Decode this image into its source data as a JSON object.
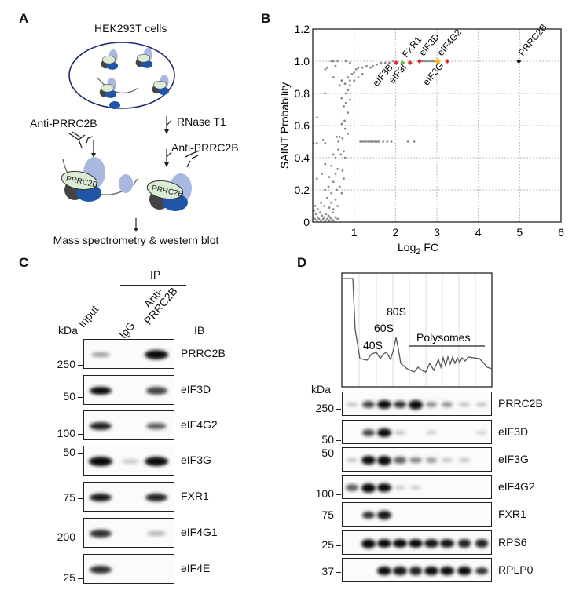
{
  "panel_a": {
    "letter": "A",
    "title": "HEK293T cells",
    "left_antibody": "Anti-PRRC2B",
    "rnase": "RNase T1",
    "right_antibody": "Anti-PRRC2B",
    "complex_label_left": "PRRC2B",
    "complex_label_right": "PRRC2B",
    "readout": "Mass spectrometry & western blot",
    "colors": {
      "cell_outline": "#1f2a6b",
      "light_blue": "#a9b8e0",
      "dark_blue": "#1f56a8",
      "pale_green": "#dcebd5",
      "dark_grey": "#444444"
    }
  },
  "panel_b": {
    "letter": "B"
  },
  "chart_data": {
    "type": "scatter",
    "xlabel": "Log 2 FC",
    "ylabel": "SAINT Probability",
    "xlim": [
      0,
      6
    ],
    "ylim": [
      0,
      1.2
    ],
    "xticks": [
      "1",
      "2",
      "3",
      "4",
      "5",
      "6"
    ],
    "yticks": [
      "0",
      "0.2",
      "0.4",
      "0.6",
      "0.8",
      "1.0",
      "1.2"
    ],
    "grid": true,
    "background_points_color": "#8a8a8a",
    "background_points": [
      [
        0.05,
        0.02
      ],
      [
        0.08,
        0.05
      ],
      [
        0.1,
        0.01
      ],
      [
        0.12,
        0.03
      ],
      [
        0.15,
        0.02
      ],
      [
        0.18,
        0.06
      ],
      [
        0.2,
        0.01
      ],
      [
        0.22,
        0.04
      ],
      [
        0.25,
        0.02
      ],
      [
        0.28,
        0.03
      ],
      [
        0.3,
        0.01
      ],
      [
        0.32,
        0.05
      ],
      [
        0.35,
        0.02
      ],
      [
        0.38,
        0.04
      ],
      [
        0.4,
        0.01
      ],
      [
        0.42,
        0.03
      ],
      [
        0.45,
        0.02
      ],
      [
        0.48,
        0.06
      ],
      [
        0.5,
        0.01
      ],
      [
        0.55,
        0.03
      ],
      [
        0.6,
        0.02
      ],
      [
        0.03,
        0.07
      ],
      [
        0.06,
        0.1
      ],
      [
        0.12,
        0.08
      ],
      [
        0.2,
        0.12
      ],
      [
        0.28,
        0.1
      ],
      [
        0.35,
        0.15
      ],
      [
        0.4,
        0.09
      ],
      [
        0.45,
        0.12
      ],
      [
        0.5,
        0.08
      ],
      [
        0.55,
        0.14
      ],
      [
        0.6,
        0.1
      ],
      [
        0.3,
        0.2
      ],
      [
        0.38,
        0.22
      ],
      [
        0.45,
        0.18
      ],
      [
        0.5,
        0.25
      ],
      [
        0.58,
        0.2
      ],
      [
        0.65,
        0.22
      ],
      [
        0.7,
        0.18
      ],
      [
        0.1,
        0.27
      ],
      [
        0.22,
        0.3
      ],
      [
        0.3,
        0.36
      ],
      [
        0.4,
        0.28
      ],
      [
        0.45,
        0.35
      ],
      [
        0.55,
        0.3
      ],
      [
        0.6,
        0.33
      ],
      [
        0.72,
        0.32
      ],
      [
        0.75,
        0.27
      ],
      [
        0.5,
        0.42
      ],
      [
        0.55,
        0.4
      ],
      [
        0.62,
        0.45
      ],
      [
        0.68,
        0.42
      ],
      [
        0.75,
        0.44
      ],
      [
        0.78,
        0.4
      ],
      [
        0.02,
        0.49
      ],
      [
        0.1,
        0.49
      ],
      [
        0.25,
        0.51
      ],
      [
        0.3,
        0.49
      ],
      [
        0.58,
        0.53
      ],
      [
        0.62,
        0.5
      ],
      [
        0.65,
        0.53
      ],
      [
        0.72,
        0.52
      ],
      [
        0.78,
        0.58
      ],
      [
        0.85,
        0.55
      ],
      [
        0.7,
        0.61
      ],
      [
        0.77,
        0.63
      ],
      [
        0.1,
        0.65
      ],
      [
        0.85,
        0.68
      ],
      [
        0.75,
        0.72
      ],
      [
        0.8,
        0.74
      ],
      [
        0.9,
        0.76
      ],
      [
        0.3,
        0.8
      ],
      [
        0.7,
        0.77
      ],
      [
        0.8,
        0.8
      ],
      [
        0.85,
        0.82
      ],
      [
        0.9,
        0.85
      ],
      [
        0.65,
        0.85
      ],
      [
        0.7,
        0.88
      ],
      [
        0.78,
        0.86
      ],
      [
        0.85,
        0.9
      ],
      [
        0.9,
        0.88
      ],
      [
        0.95,
        0.92
      ],
      [
        0.5,
        0.9
      ],
      [
        0.3,
        0.95
      ],
      [
        0.35,
        0.96
      ],
      [
        0.55,
        0.97
      ],
      [
        0.45,
        1.0
      ],
      [
        0.5,
        1.0
      ],
      [
        0.6,
        1.0
      ],
      [
        0.8,
        1.0
      ],
      [
        0.9,
        0.99
      ],
      [
        1.0,
        0.93
      ],
      [
        1.05,
        0.95
      ],
      [
        1.1,
        0.96
      ],
      [
        1.2,
        0.96
      ],
      [
        1.3,
        0.97
      ],
      [
        1.4,
        0.96
      ],
      [
        1.45,
        0.97
      ],
      [
        1.55,
        0.98
      ],
      [
        1.65,
        0.99
      ],
      [
        1.75,
        0.99
      ],
      [
        1.85,
        0.99
      ],
      [
        1.95,
        1.0
      ],
      [
        1.0,
        0.88
      ],
      [
        1.1,
        0.9
      ],
      [
        1.2,
        0.92
      ],
      [
        1.15,
        0.5
      ],
      [
        1.2,
        0.5
      ],
      [
        1.25,
        0.5
      ],
      [
        1.3,
        0.5
      ],
      [
        1.35,
        0.5
      ],
      [
        1.4,
        0.5
      ],
      [
        1.45,
        0.5
      ],
      [
        1.5,
        0.5
      ],
      [
        1.55,
        0.5
      ],
      [
        1.6,
        0.5
      ],
      [
        1.7,
        0.5
      ],
      [
        1.8,
        0.5
      ],
      [
        1.9,
        0.5
      ],
      [
        2.3,
        0.5
      ],
      [
        2.45,
        0.5
      ],
      [
        2.6,
        1.0
      ],
      [
        2.65,
        1.0
      ],
      [
        2.7,
        1.0
      ],
      [
        2.75,
        1.0
      ],
      [
        2.8,
        1.0
      ],
      [
        2.85,
        1.0
      ],
      [
        2.9,
        1.0
      ],
      [
        2.95,
        1.0
      ]
    ],
    "highlighted": [
      {
        "label": "eIF3B",
        "x": 2.02,
        "y": 0.99,
        "color": "#e02a2a",
        "label_side": "below"
      },
      {
        "label": "FXR1",
        "x": 2.17,
        "y": 0.99,
        "color": "#5cbf4a",
        "label_side": "above"
      },
      {
        "label": "eIF3I",
        "x": 2.35,
        "y": 0.99,
        "color": "#e02a2a",
        "label_side": "below"
      },
      {
        "label": "eIF3D",
        "x": 2.58,
        "y": 1.0,
        "color": "#e02a2a",
        "label_side": "above"
      },
      {
        "label": "eIF4G2",
        "x": 3.02,
        "y": 1.0,
        "color": "#f2b81c",
        "label_side": "above"
      },
      {
        "label": "eIF3G",
        "x": 3.25,
        "y": 1.0,
        "color": "#e02a2a",
        "label_side": "below"
      },
      {
        "label": "PRRC2B",
        "x": 4.98,
        "y": 1.0,
        "color": "#111111",
        "label_side": "above"
      }
    ]
  },
  "panel_c": {
    "letter": "C",
    "ip_label": "IP",
    "kda_label": "kDa",
    "ib_label": "IB",
    "lanes": [
      "Input",
      "IgG",
      "Anti-PRRC2B"
    ],
    "lane_anti_line1": "Anti-",
    "lane_anti_line2": "PRRC2B",
    "blots": [
      {
        "label": "PRRC2B",
        "marker": "250",
        "bands": [
          0.25,
          0,
          1.0
        ]
      },
      {
        "label": "eIF3D",
        "marker": "50",
        "bands": [
          0.85,
          0,
          0.6
        ]
      },
      {
        "label": "eIF4G2",
        "marker": "100",
        "bands": [
          0.75,
          0,
          0.5
        ]
      },
      {
        "label": "eIF3G",
        "marker": "50",
        "bands": [
          0.9,
          0.05,
          1.0
        ]
      },
      {
        "label": "FXR1",
        "marker": "75",
        "bands": [
          0.8,
          0,
          0.75
        ]
      },
      {
        "label": "eIF4G1",
        "marker": "200",
        "bands": [
          0.7,
          0,
          0.15
        ]
      },
      {
        "label": "eIF4E",
        "marker": "25",
        "bands": [
          0.7,
          0,
          0
        ]
      }
    ]
  },
  "panel_d": {
    "letter": "D",
    "kda_label": "kDa",
    "peaks": {
      "s40": "40S",
      "s60": "60S",
      "s80": "80S",
      "polysomes": "Polysomes"
    },
    "blots": [
      {
        "label": "PRRC2B",
        "marker": "250",
        "bands": [
          0.1,
          0.6,
          0.9,
          0.7,
          1.0,
          0.3,
          0.3,
          0.1,
          0.1
        ]
      },
      {
        "label": "eIF3D",
        "marker": "50",
        "bands": [
          0,
          0.6,
          0.95,
          0.1,
          0,
          0.05,
          0,
          0,
          0.03
        ]
      },
      {
        "label": "eIF3G",
        "marker": "50",
        "bands": [
          0.1,
          0.85,
          1.0,
          0.5,
          0.35,
          0.25,
          0.1,
          0.1,
          0
        ]
      },
      {
        "label": "eIF4G2",
        "marker": "100",
        "bands": [
          0.5,
          1.0,
          0.9,
          0.05,
          0.05,
          0,
          0,
          0,
          0
        ]
      },
      {
        "label": "FXR1",
        "marker": "75",
        "bands": [
          0,
          0.7,
          0.8,
          0,
          0,
          0,
          0,
          0,
          0
        ]
      },
      {
        "label": "RPS6",
        "marker": "25",
        "bands": [
          0,
          1.0,
          0.85,
          0.85,
          0.85,
          0.8,
          0.8,
          0.75,
          0.75
        ]
      },
      {
        "label": "RPLP0",
        "marker": "37",
        "bands": [
          0,
          0,
          0.9,
          0.8,
          0.75,
          0.85,
          0.85,
          0.85,
          0.7
        ]
      }
    ]
  }
}
